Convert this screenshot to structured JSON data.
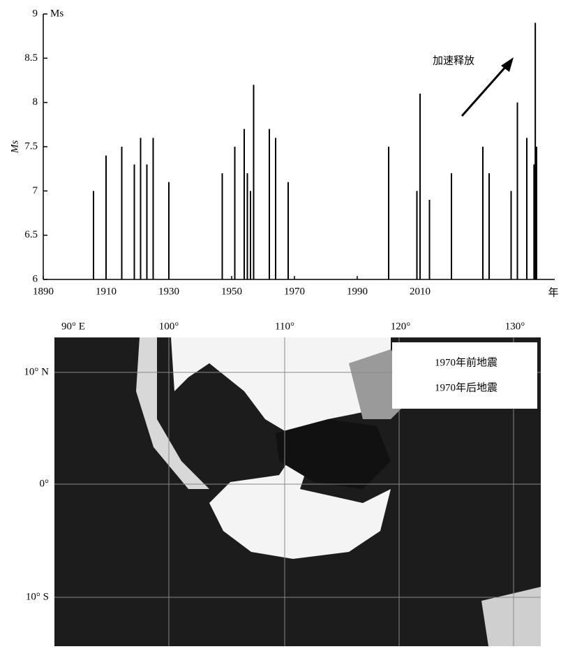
{
  "chart_data": {
    "type": "stem",
    "unit_label": "Ms",
    "y_label": "Ms",
    "x_unit_label": "年",
    "annotation": "加速释放",
    "color": "#000000",
    "x": [
      1906,
      1910,
      1915,
      1919,
      1921,
      1923,
      1925,
      1930,
      1947,
      1951,
      1954,
      1955,
      1956,
      1957,
      1962,
      1964,
      1968,
      2000,
      2009,
      2010,
      2013,
      2020,
      2030,
      2032,
      2039,
      2041,
      2044,
      2046.3,
      2046.7,
      2047.1
    ],
    "values": [
      7.0,
      7.4,
      7.5,
      7.3,
      7.6,
      7.3,
      7.6,
      7.1,
      7.2,
      7.5,
      7.7,
      7.2,
      7.0,
      8.2,
      7.7,
      7.6,
      7.1,
      7.5,
      7.0,
      8.1,
      6.9,
      7.2,
      7.5,
      7.2,
      7.0,
      8.0,
      7.6,
      7.3,
      8.9,
      7.5
    ],
    "xlim": [
      1890,
      2050
    ],
    "xticks": [
      1890,
      1910,
      1930,
      1950,
      1970,
      1990,
      2010
    ],
    "ylim": [
      6,
      9
    ],
    "yticks": [
      6,
      6.5,
      7,
      7.5,
      8,
      8.5,
      9
    ]
  },
  "map": {
    "lon_labels": [
      "90° E",
      "100°",
      "110°",
      "120°",
      "130°"
    ],
    "lat_labels": [
      "10° N",
      "0°",
      "10° S"
    ],
    "legend": [
      "1970年前地震",
      "1970年后地震"
    ]
  }
}
